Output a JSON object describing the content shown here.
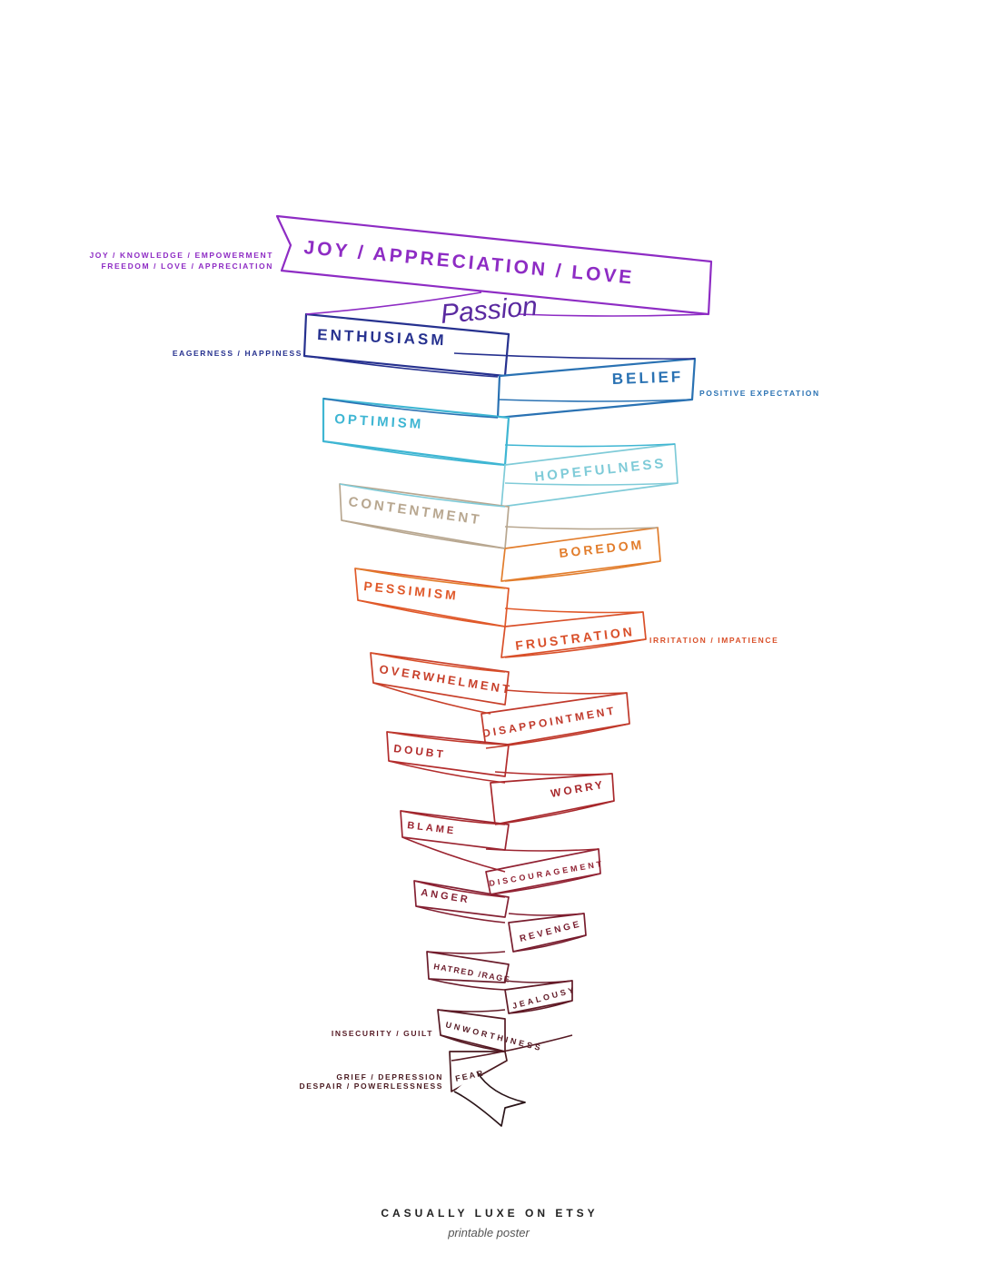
{
  "scale": {
    "levels": [
      {
        "label": "JOY / APPRECIATION / LOVE",
        "color": "#8e2cc4"
      },
      {
        "label": "ENTHUSIASM",
        "color": "#26318f"
      },
      {
        "label": "BELIEF",
        "color": "#2a72b3"
      },
      {
        "label": "OPTIMISM",
        "color": "#3fb6d3"
      },
      {
        "label": "HOPEFULNESS",
        "color": "#7fcbd8"
      },
      {
        "label": "CONTENTMENT",
        "color": "#b8a790"
      },
      {
        "label": "BOREDOM",
        "color": "#e27d2c"
      },
      {
        "label": "PESSIMISM",
        "color": "#e0592a"
      },
      {
        "label": "FRUSTRATION",
        "color": "#d9502a"
      },
      {
        "label": "OVERWHELMENT",
        "color": "#c8402a"
      },
      {
        "label": "DISAPPOINTMENT",
        "color": "#c0392b"
      },
      {
        "label": "DOUBT",
        "color": "#b32d2d"
      },
      {
        "label": "WORRY",
        "color": "#a8282c"
      },
      {
        "label": "BLAME",
        "color": "#9b2430"
      },
      {
        "label": "DISCOURAGEMENT",
        "color": "#912233"
      },
      {
        "label": "ANGER",
        "color": "#842032"
      },
      {
        "label": "REVENGE",
        "color": "#781d2e"
      },
      {
        "label": "HATRED /RAGE",
        "color": "#6b1c2b"
      },
      {
        "label": "JEALOUSY",
        "color": "#611b27"
      },
      {
        "label": "UNWORTHINESS",
        "color": "#561a24"
      },
      {
        "label": "FEAR",
        "color": "#4a1a20"
      }
    ],
    "passion_label": "Passion",
    "passion_color": "#5a2aa0",
    "notes": {
      "joy_line1": "JOY / KNOWLEDGE / EMPOWERMENT",
      "joy_line2": "FREEDOM / LOVE / APPRECIATION",
      "enthusiasm": "EAGERNESS / HAPPINESS",
      "belief": "POSITIVE EXPECTATION",
      "frustration": "IRRITATION / IMPATIENCE",
      "unworthiness": "INSECURITY / GUILT",
      "fear_line1": "GRIEF / DEPRESSION",
      "fear_line2": "DESPAIR / POWERLESSNESS"
    }
  },
  "footer": {
    "brand": "CASUALLY LUXE ON ETSY",
    "tagline": "printable poster"
  }
}
